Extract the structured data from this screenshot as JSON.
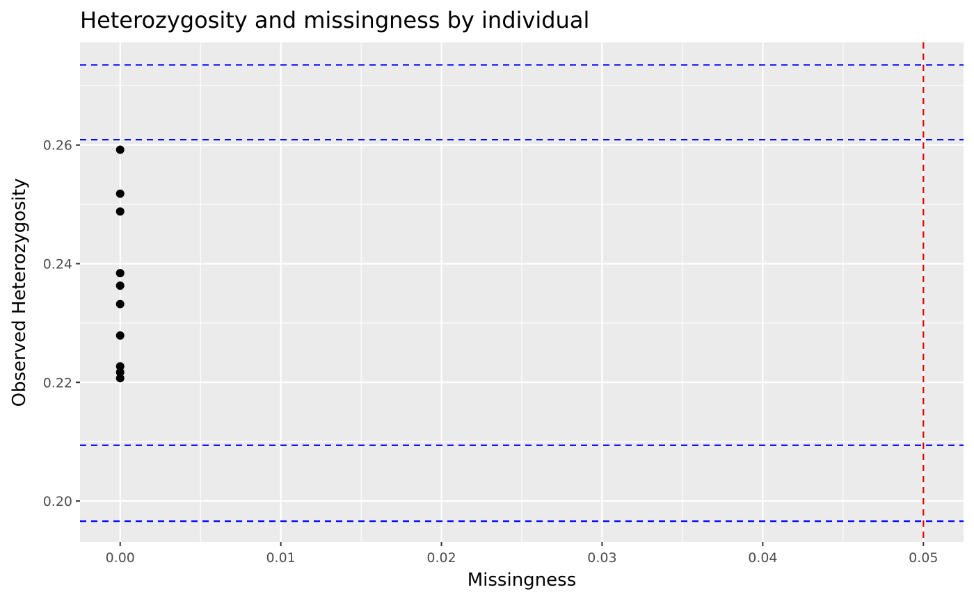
{
  "chart_data": {
    "type": "scatter",
    "title": "Heterozygosity and missingness by individual",
    "xlabel": "Missingness",
    "ylabel": "Observed Heterozygosity",
    "xlim": [
      -0.0025,
      0.0525
    ],
    "ylim": [
      0.1931,
      0.2773
    ],
    "x_ticks": [
      0.0,
      0.01,
      0.02,
      0.03,
      0.04,
      0.05
    ],
    "x_tick_labels": [
      "0.00",
      "0.01",
      "0.02",
      "0.03",
      "0.04",
      "0.05"
    ],
    "y_ticks": [
      0.2,
      0.22,
      0.24,
      0.26
    ],
    "y_tick_labels": [
      "0.20",
      "0.22",
      "0.24",
      "0.26"
    ],
    "grid": true,
    "points": [
      {
        "x": 0.0,
        "y": 0.2592
      },
      {
        "x": 0.0,
        "y": 0.2518
      },
      {
        "x": 0.0,
        "y": 0.2488
      },
      {
        "x": 0.0,
        "y": 0.2384
      },
      {
        "x": 0.0,
        "y": 0.2363
      },
      {
        "x": 0.0,
        "y": 0.2332
      },
      {
        "x": 0.0,
        "y": 0.2279
      },
      {
        "x": 0.0,
        "y": 0.2227
      },
      {
        "x": 0.0,
        "y": 0.2217
      },
      {
        "x": 0.0,
        "y": 0.2207
      }
    ],
    "hlines": [
      0.2735,
      0.2609,
      0.2094,
      0.1966
    ],
    "vlines": [
      0.05
    ],
    "colors": {
      "panel_background": "#ebebeb",
      "grid": "#ffffff",
      "points": "#000000",
      "hline": "#0000ff",
      "vline": "#dd0000"
    }
  }
}
